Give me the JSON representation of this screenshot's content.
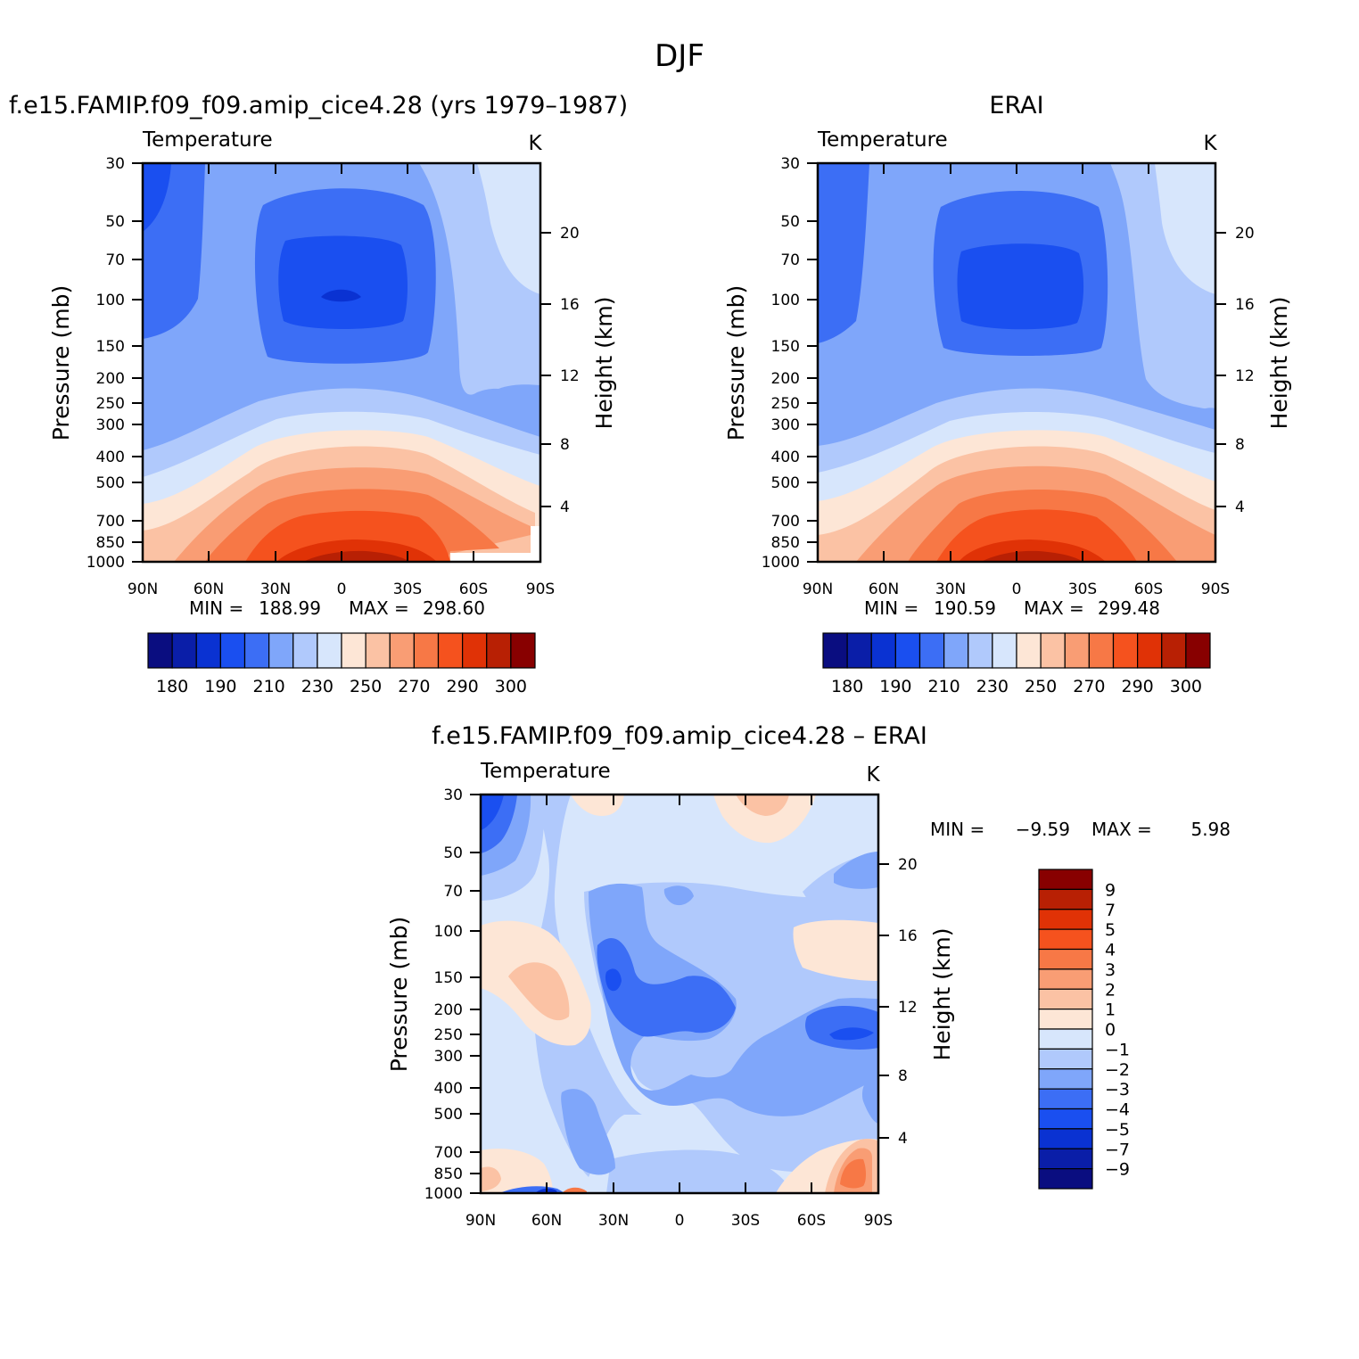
{
  "page_title": "DJF",
  "chart_data": [
    {
      "type": "contour",
      "title": "f.e15.FAMIP.f09_f09.amip_cice4.28 (yrs 1979–1987)",
      "variable": "Temperature",
      "units": "K",
      "xlabel": "",
      "ylabel": "Pressure (mb)",
      "y2label": "Height (km)",
      "x_ticks": [
        "90N",
        "60N",
        "30N",
        "0",
        "30S",
        "60S",
        "90S"
      ],
      "y_ticks": [
        30,
        50,
        70,
        100,
        150,
        200,
        250,
        300,
        400,
        500,
        700,
        850,
        1000
      ],
      "y2_ticks": [
        20,
        16,
        12,
        8,
        4
      ],
      "min": "188.99",
      "max": "298.60",
      "min_label": "MIN =",
      "max_label": "MAX =",
      "colorbar_labels": [
        "180",
        "190",
        "210",
        "230",
        "250",
        "270",
        "290",
        "300"
      ],
      "levels": [
        180,
        185,
        190,
        200,
        210,
        220,
        230,
        240,
        250,
        260,
        270,
        280,
        290,
        295,
        300
      ]
    },
    {
      "type": "contour",
      "title": "ERAI",
      "variable": "Temperature",
      "units": "K",
      "ylabel": "Pressure (mb)",
      "y2label": "Height (km)",
      "x_ticks": [
        "90N",
        "60N",
        "30N",
        "0",
        "30S",
        "60S",
        "90S"
      ],
      "y_ticks": [
        30,
        50,
        70,
        100,
        150,
        200,
        250,
        300,
        400,
        500,
        700,
        850,
        1000
      ],
      "y2_ticks": [
        20,
        16,
        12,
        8,
        4
      ],
      "min": "190.59",
      "max": "299.48",
      "min_label": "MIN =",
      "max_label": "MAX =",
      "colorbar_labels": [
        "180",
        "190",
        "210",
        "230",
        "250",
        "270",
        "290",
        "300"
      ]
    },
    {
      "type": "contour",
      "title": "f.e15.FAMIP.f09_f09.amip_cice4.28 – ERAI",
      "variable": "Temperature",
      "units": "K",
      "ylabel": "Pressure (mb)",
      "y2label": "Height (km)",
      "x_ticks": [
        "90N",
        "60N",
        "30N",
        "0",
        "30S",
        "60S",
        "90S"
      ],
      "y_ticks": [
        30,
        50,
        70,
        100,
        150,
        200,
        250,
        300,
        400,
        500,
        700,
        850,
        1000
      ],
      "y2_ticks": [
        20,
        16,
        12,
        8,
        4
      ],
      "min": "−9.59",
      "max": "5.98",
      "min_label": "MIN =",
      "max_label": "MAX =",
      "colorbar_labels": [
        "9",
        "7",
        "5",
        "4",
        "3",
        "2",
        "1",
        "0",
        "−1",
        "−2",
        "−3",
        "−4",
        "−5",
        "−7",
        "−9"
      ]
    }
  ],
  "colors": {
    "palette": [
      "#0a0d80",
      "#0a1ea8",
      "#0a32d2",
      "#1a4ff0",
      "#3c6ef5",
      "#7fa6fa",
      "#b0c9fc",
      "#d7e6fc",
      "#fde6d6",
      "#fbc2a4",
      "#f99d74",
      "#f77846",
      "#f5521e",
      "#e03206",
      "#b82004",
      "#880000"
    ]
  }
}
